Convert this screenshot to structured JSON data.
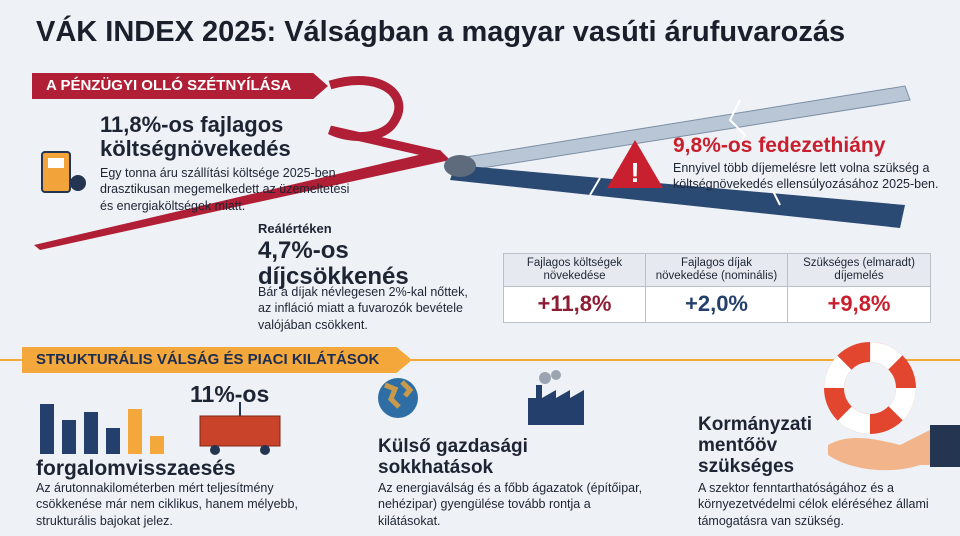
{
  "title": "VÁK INDEX 2025: Válságban a magyar vasúti árufuvarozás",
  "section1": {
    "label": "A PÉNZÜGYI OLLÓ SZÉTNYÍLÁSA",
    "cost": {
      "title": "11,8%-os fajlagos költségnövekedés",
      "text": "Egy tonna áru szállítási költsége 2025-ben drasztikusan megemelkedett az üzemeltetési és energiaköltségek miatt."
    },
    "deficit": {
      "title": "9,8%-os fedezethiány",
      "text": "Ennyivel több díjemelésre lett volna szükség a költségnövekedés ellensúlyozásához 2025-ben."
    },
    "real": {
      "kicker": "Reálértéken",
      "title": "4,7%-os díjcsökkenés",
      "text": "Bár a díjak névlegesen 2%-kal nőttek, az infláció miatt a fuvarozók bevétele valójában csökkent."
    },
    "table": {
      "headers": [
        "Fajlagos költségek növekedése",
        "Fajlagos díjak növekedése (nominális)",
        "Szükséges (elmaradt) díjemelés"
      ],
      "values": [
        "+11,8%",
        "+2,0%",
        "+9,8%"
      ]
    }
  },
  "section2": {
    "label": "STRUKTURÁLIS VÁLSÁG ÉS PIACI KILÁTÁSOK",
    "items": [
      {
        "highlight": "11%-os",
        "title": "forgalomvisszaesés",
        "text": "Az árutonnakilométerben mért teljesítmény csökkenése már nem ciklikus, hanem mélyebb, strukturális bajokat jelez."
      },
      {
        "title": "Külső gazdasági sokkhatások",
        "text": "Az energiaválság és a főbb ágazatok (építőipar, nehézipar) gyengülése tovább rontja a kilátásokat."
      },
      {
        "title": "Kormányzati mentőöv szükséges",
        "text": "A szektor fenntarthatóságához és a környezetvédelmi célok eléréséhez állami támogatásra van szükség."
      }
    ]
  }
}
